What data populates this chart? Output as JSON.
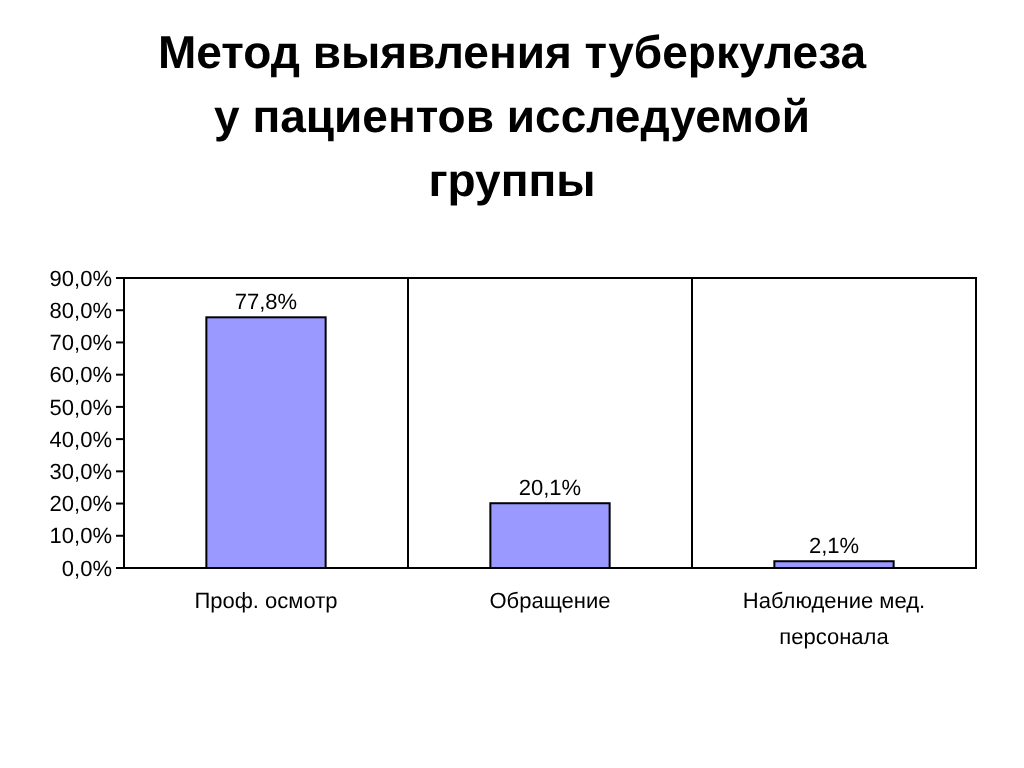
{
  "chart_data": {
    "type": "bar",
    "title": "Метод выявления туберкулеза у пациентов исследуемой группы",
    "categories": [
      "Проф. осмотр",
      "Обращение",
      "Наблюдение мед. персонала"
    ],
    "values": [
      77.8,
      20.1,
      2.1
    ],
    "color": "#9999ff",
    "value_labels": [
      "77,8%",
      "20,1%",
      "2,1%"
    ],
    "ylim": [
      0,
      90
    ],
    "yticks": [
      {
        "value": 0,
        "label": "0,0%"
      },
      {
        "value": 10,
        "label": "10,0%"
      },
      {
        "value": 20,
        "label": "20,0%"
      },
      {
        "value": 30,
        "label": "30,0%"
      },
      {
        "value": 40,
        "label": "40,0%"
      },
      {
        "value": 50,
        "label": "50,0%"
      },
      {
        "value": 60,
        "label": "60,0%"
      },
      {
        "value": 70,
        "label": "70,0%"
      },
      {
        "value": 80,
        "label": "80,0%"
      },
      {
        "value": 90,
        "label": "90,0%"
      }
    ],
    "grid": "x"
  }
}
